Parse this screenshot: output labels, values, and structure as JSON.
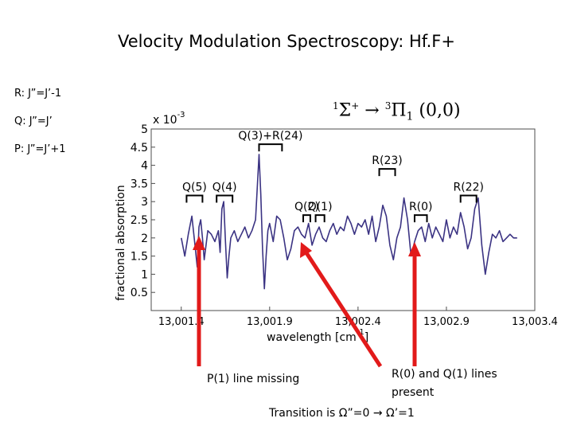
{
  "title": "Velocity Modulation Spectroscopy: Hf.F+",
  "rules": [
    "R: J”=J’-1",
    "Q: J”=J’",
    "P: J”=J’+1"
  ],
  "transition": {
    "lower_sup": "1",
    "lower_sym": "Σ",
    "lower_sup2": "+",
    "arrow": " → ",
    "upper_sup": "3",
    "upper_sym": "Π",
    "upper_sub": "1",
    "band": " (0,0)"
  },
  "notes": {
    "p1_missing": "P(1) line missing",
    "r0_q1_line1": "R(0) and Q(1) lines",
    "r0_q1_line2": "present",
    "transition_is": "Transition is Ω”=0 → Ω’=1"
  },
  "colors": {
    "trace": "#3b3383",
    "arrow": "#e21a1a",
    "frame": "#4d4d4d"
  },
  "chart_data": {
    "type": "line",
    "title": "",
    "xlabel": "wavelength [cm-1]",
    "ylabel": "fractional absorption",
    "y_multiplier": "x 10-3",
    "xlim": [
      13001.23,
      13003.4
    ],
    "ylim": [
      0,
      5
    ],
    "x_tick_labels": [
      "13,001.4",
      "13,001.9",
      "13,002.4",
      "13,002.9",
      "13,003.4"
    ],
    "y_tick_labels": [
      "0.5",
      "1",
      "1.5",
      "2",
      "2.5",
      "3",
      "3.5",
      "4",
      "4.5",
      "5"
    ],
    "grid": false,
    "series": [
      {
        "x": [
          13001.4,
          13001.42,
          13001.44,
          13001.46,
          13001.48,
          13001.49,
          13001.5,
          13001.51,
          13001.52,
          13001.53,
          13001.54,
          13001.55,
          13001.57,
          13001.59,
          13001.61,
          13001.62,
          13001.63,
          13001.64,
          13001.65,
          13001.66,
          13001.67,
          13001.68,
          13001.69,
          13001.7,
          13001.72,
          13001.74,
          13001.76,
          13001.78,
          13001.8,
          13001.82,
          13001.83,
          13001.84,
          13001.85,
          13001.86,
          13001.87,
          13001.88,
          13001.89,
          13001.9,
          13001.92,
          13001.94,
          13001.96,
          13001.98,
          13002.0,
          13002.02,
          13002.04,
          13002.06,
          13002.08,
          13002.1,
          13002.12,
          13002.14,
          13002.16,
          13002.18,
          13002.2,
          13002.22,
          13002.24,
          13002.26,
          13002.28,
          13002.3,
          13002.32,
          13002.34,
          13002.36,
          13002.38,
          13002.4,
          13002.42,
          13002.44,
          13002.46,
          13002.48,
          13002.5,
          13002.52,
          13002.54,
          13002.56,
          13002.58,
          13002.6,
          13002.62,
          13002.64,
          13002.66,
          13002.68,
          13002.7,
          13002.72,
          13002.74,
          13002.76,
          13002.78,
          13002.8,
          13002.82,
          13002.84,
          13002.86,
          13002.88,
          13002.9,
          13002.92,
          13002.94,
          13002.96,
          13002.98,
          13003.0,
          13003.02,
          13003.04,
          13003.06,
          13003.08,
          13003.1,
          13003.12,
          13003.14,
          13003.16,
          13003.18,
          13003.2,
          13003.22,
          13003.24,
          13003.26,
          13003.28,
          13003.3
        ],
        "y": [
          2.0,
          1.5,
          2.1,
          2.6,
          1.7,
          1.2,
          2.3,
          2.5,
          2.0,
          1.4,
          1.8,
          2.2,
          2.1,
          1.9,
          2.2,
          1.6,
          2.8,
          3.0,
          1.9,
          0.9,
          1.5,
          2.0,
          2.1,
          2.2,
          1.9,
          2.1,
          2.3,
          2.0,
          2.2,
          2.5,
          3.4,
          4.3,
          3.2,
          1.7,
          0.6,
          1.5,
          2.2,
          2.4,
          1.9,
          2.6,
          2.5,
          2.0,
          1.4,
          1.7,
          2.2,
          2.3,
          2.1,
          2.0,
          2.4,
          1.8,
          2.1,
          2.3,
          2.0,
          1.9,
          2.2,
          2.4,
          2.1,
          2.3,
          2.2,
          2.6,
          2.4,
          2.1,
          2.4,
          2.3,
          2.5,
          2.1,
          2.6,
          1.9,
          2.3,
          2.9,
          2.6,
          1.8,
          1.4,
          2.0,
          2.3,
          3.1,
          2.5,
          1.5,
          1.9,
          2.2,
          2.3,
          1.9,
          2.4,
          2.0,
          2.3,
          2.1,
          1.9,
          2.5,
          2.0,
          2.3,
          2.1,
          2.7,
          2.3,
          1.7,
          2.0,
          2.8,
          3.1,
          1.8,
          1.0,
          1.6,
          2.1,
          2.0,
          2.2,
          1.9,
          2.0,
          2.1,
          2.0,
          2.0
        ]
      }
    ],
    "annotations": [
      {
        "label": "Q(5)",
        "x_from": 13001.43,
        "x_to": 13001.52,
        "y": 3.17
      },
      {
        "label": "Q(4)",
        "x_from": 13001.6,
        "x_to": 13001.69,
        "y": 3.17
      },
      {
        "label": "Q(3)+R(24)",
        "x_from": 13001.84,
        "x_to": 13001.97,
        "y": 4.58
      },
      {
        "label": "Q(2)",
        "x_from": 13002.09,
        "x_to": 13002.13,
        "y": 2.63
      },
      {
        "label": "Q(1)",
        "x_from": 13002.16,
        "x_to": 13002.21,
        "y": 2.63
      },
      {
        "label": "R(23)",
        "x_from": 13002.52,
        "x_to": 13002.61,
        "y": 3.9
      },
      {
        "label": "R(0)",
        "x_from": 13002.72,
        "x_to": 13002.79,
        "y": 2.63
      },
      {
        "label": "R(22)",
        "x_from": 13002.98,
        "x_to": 13003.07,
        "y": 3.17
      }
    ]
  }
}
